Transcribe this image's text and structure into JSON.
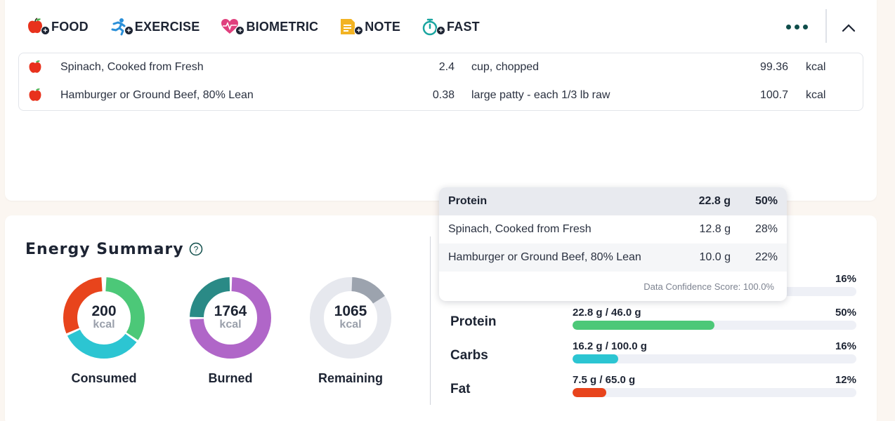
{
  "toolbar": {
    "food_label": "FOOD",
    "exercise_label": "EXERCISE",
    "biometric_label": "BIOMETRIC",
    "note_label": "NOTE",
    "fast_label": "FAST",
    "plus": "+"
  },
  "food_entries": [
    {
      "name": "Spinach, Cooked from Fresh",
      "qty": "2.4",
      "unit": "cup, chopped",
      "calories": "99.36",
      "cal_unit": "kcal"
    },
    {
      "name": "Hamburger or Ground Beef, 80% Lean",
      "qty": "0.38",
      "unit": "large patty - each 1/3 lb raw",
      "calories": "100.7",
      "cal_unit": "kcal"
    }
  ],
  "energy_summary": {
    "title": "Energy Summary",
    "consumed": {
      "value": "200",
      "unit": "kcal",
      "label": "Consumed"
    },
    "burned": {
      "value": "1764",
      "unit": "kcal",
      "label": "Burned"
    },
    "remaining": {
      "value": "1065",
      "unit": "kcal",
      "label": "Remaining"
    }
  },
  "macros": {
    "first_pct": "16%",
    "rows": [
      {
        "name": "Protein",
        "amount": "22.8 g / 46.0 g",
        "pct": "50%",
        "fill": 0.5,
        "color": "#4cc878"
      },
      {
        "name": "Carbs",
        "amount": "16.2 g / 100.0 g",
        "pct": "16%",
        "fill": 0.16,
        "color": "#2cc5d2"
      },
      {
        "name": "Fat",
        "amount": "7.5 g / 65.0 g",
        "pct": "12%",
        "fill": 0.12,
        "color": "#e8441c"
      }
    ]
  },
  "popup": {
    "header": {
      "name": "Protein",
      "grams": "22.8 g",
      "pct": "50%"
    },
    "rows": [
      {
        "name": "Spinach, Cooked from Fresh",
        "grams": "12.8 g",
        "pct": "28%"
      },
      {
        "name": "Hamburger or Ground Beef, 80% Lean",
        "grams": "10.0 g",
        "pct": "22%"
      }
    ],
    "confidence": "Data Confidence Score: 100.0%"
  },
  "colors": {
    "food_red": "#e8321c",
    "exercise_blue": "#2a8fd8",
    "biometric_pink": "#e0407e",
    "note_yellow": "#f2b323",
    "fast_teal": "#1aa5a0",
    "consumed_red": "#e8441c",
    "consumed_green": "#4cc878",
    "consumed_cyan": "#2cc5d2",
    "burned_teal": "#2a8a86",
    "burned_purple": "#b066c8",
    "remaining_gray": "#9ca3ae",
    "remaining_track": "#e6e8ee"
  },
  "icons": [
    "apple-icon",
    "runner-icon",
    "heart-pulse-icon",
    "note-icon",
    "stopwatch-icon",
    "more-dots-icon",
    "chevron-up-icon",
    "help-circle-icon"
  ]
}
